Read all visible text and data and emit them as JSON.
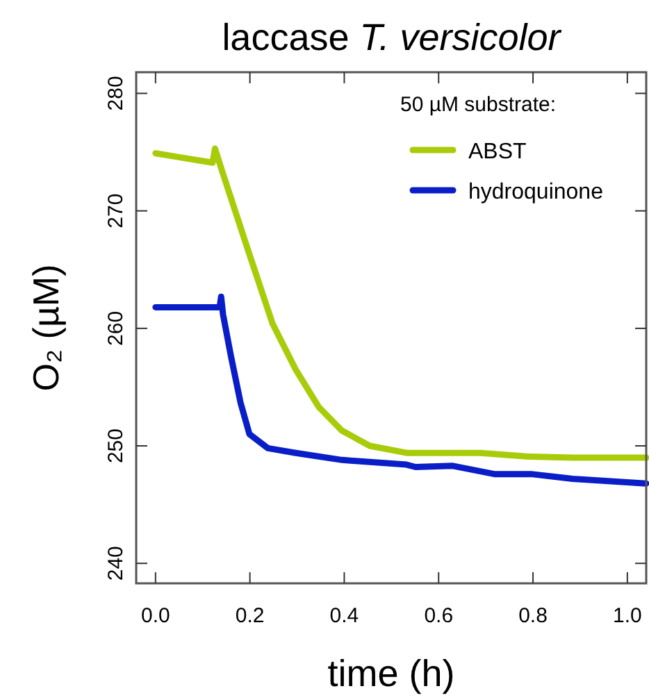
{
  "chart_data": {
    "type": "line",
    "title": "laccase T. versicolor",
    "xlabel": "time (h)",
    "ylabel": "O₂ (µM)",
    "legend_title": "50 µM  substrate:",
    "legend": "top right",
    "grid": false,
    "marker": "none",
    "line_style": "solid",
    "xlim": [
      -0.041,
      1.04
    ],
    "xticks": [
      {
        "value": 0,
        "label": "0.0"
      },
      {
        "value": 0.2,
        "label": "0.2"
      },
      {
        "value": 0.4,
        "label": "0.4"
      },
      {
        "value": 0.6,
        "label": "0.6"
      },
      {
        "value": 0.8,
        "label": "0.8"
      },
      {
        "value": 1,
        "label": "1.0"
      }
    ],
    "ylim": [
      238.3,
      281.8
    ],
    "yticks": [
      240,
      250,
      260,
      270,
      280
    ],
    "series": [
      {
        "name": "ABST",
        "color": "#a8cc0a",
        "x": [
          0,
          0.121,
          0.126,
          0.141,
          0.199,
          0.248,
          0.297,
          0.346,
          0.395,
          0.454,
          0.532,
          0.59,
          0.688,
          0.786,
          0.884,
          1.04
        ],
        "values": [
          274.9,
          274.1,
          275.3,
          273.4,
          266.3,
          260.4,
          256.5,
          253.3,
          251.3,
          250,
          249.4,
          249.4,
          249.4,
          249.1,
          249,
          249
        ]
      },
      {
        "name": "hydroquinone",
        "color": "#0a1ec8",
        "x": [
          0,
          0.136,
          0.139,
          0.143,
          0.16,
          0.18,
          0.199,
          0.238,
          0.297,
          0.395,
          0.532,
          0.551,
          0.63,
          0.718,
          0.796,
          0.884,
          1.04
        ],
        "values": [
          261.8,
          261.8,
          262.7,
          261.2,
          257.6,
          253.7,
          251,
          249.8,
          249.4,
          248.8,
          248.4,
          248.2,
          248.3,
          247.6,
          247.6,
          247.2,
          246.8
        ]
      }
    ]
  }
}
